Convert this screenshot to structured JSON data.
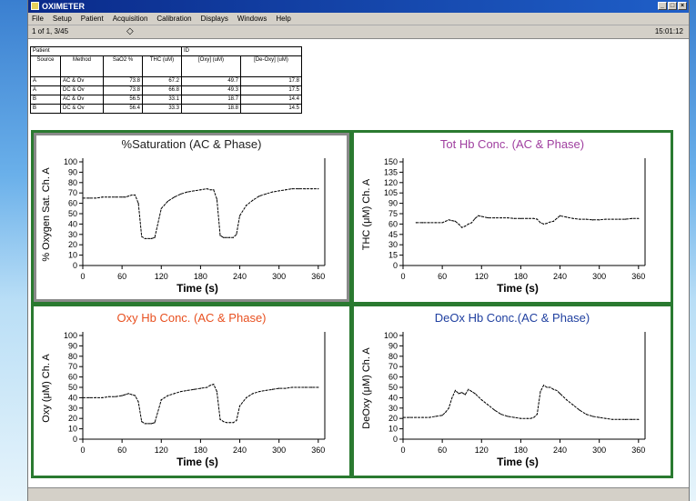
{
  "window": {
    "title": "OXIMETER",
    "buttons": [
      "_",
      "□",
      "×"
    ]
  },
  "menu": [
    "File",
    "Setup",
    "Patient",
    "Acquisition",
    "Calibration",
    "Displays",
    "Windows",
    "Help"
  ],
  "status": {
    "record": "1 of 1, 3/45",
    "nav_icon": "◇",
    "time": "15:01:12"
  },
  "table": {
    "patient_label": "Patient",
    "id_label": "ID",
    "headers": [
      "Source",
      "Method",
      "SaO2 %",
      "THC (uM)",
      "[Oxy] (uM)",
      "[De-Oxy] (uM)"
    ],
    "rows": [
      [
        "A",
        "AC & Ov",
        "73.8",
        "67.2",
        "49.7",
        "17.8"
      ],
      [
        "A",
        "DC & Ov",
        "73.8",
        "66.8",
        "49.3",
        "17.5"
      ],
      [
        "B",
        "AC & Ov",
        "56.5",
        "33.1",
        "18.7",
        "14.4"
      ],
      [
        "B",
        "DC & Ov",
        "56.4",
        "33.3",
        "18.8",
        "14.5"
      ]
    ]
  },
  "colors": {
    "panel_border": "#2a7a30",
    "title_black": "#222222",
    "title_purple": "#a040a0",
    "title_orange": "#e85020",
    "title_blue": "#2040a0"
  },
  "chart_data": [
    {
      "type": "line",
      "title": "%Saturation (AC & Phase)",
      "title_color": "#222222",
      "ylabel": "% Oxygen Sat. Ch. A",
      "xlabel": "Time (s)",
      "yticks": [
        0,
        10,
        20,
        30,
        40,
        50,
        60,
        70,
        80,
        90,
        100
      ],
      "xticks": [
        0,
        60,
        120,
        180,
        240,
        300,
        360
      ],
      "ylim": [
        0,
        100
      ],
      "xlim": [
        0,
        370
      ],
      "x": [
        0,
        10,
        20,
        30,
        40,
        50,
        60,
        65,
        70,
        75,
        80,
        85,
        90,
        95,
        100,
        105,
        110,
        120,
        130,
        140,
        150,
        160,
        170,
        180,
        190,
        195,
        200,
        205,
        210,
        215,
        220,
        225,
        230,
        235,
        240,
        250,
        260,
        270,
        280,
        290,
        300,
        310,
        320,
        330,
        340,
        350,
        360
      ],
      "y": [
        65,
        65,
        65,
        66,
        66,
        66,
        66,
        66,
        67,
        68,
        68,
        60,
        28,
        26,
        26,
        26,
        27,
        55,
        62,
        66,
        69,
        71,
        72,
        73,
        74,
        73,
        73,
        64,
        29,
        27,
        27,
        27,
        27,
        30,
        48,
        58,
        63,
        67,
        69,
        71,
        72,
        73,
        74,
        74,
        74,
        74,
        74
      ]
    },
    {
      "type": "line",
      "title": "Tot Hb Conc. (AC & Phase)",
      "title_color": "#a040a0",
      "ylabel": "THC (μM) Ch. A",
      "xlabel": "Time (s)",
      "yticks": [
        0,
        15,
        30,
        45,
        60,
        75,
        90,
        105,
        120,
        135,
        150
      ],
      "xticks": [
        0,
        60,
        120,
        180,
        240,
        300,
        360
      ],
      "ylim": [
        0,
        150
      ],
      "xlim": [
        0,
        370
      ],
      "x": [
        20,
        30,
        40,
        50,
        60,
        65,
        70,
        75,
        80,
        85,
        90,
        95,
        100,
        105,
        110,
        115,
        120,
        130,
        140,
        150,
        160,
        170,
        180,
        190,
        200,
        205,
        210,
        215,
        220,
        225,
        230,
        235,
        240,
        250,
        260,
        270,
        280,
        290,
        300,
        310,
        320,
        330,
        340,
        350,
        360
      ],
      "y": [
        62,
        62,
        62,
        62,
        62,
        64,
        66,
        65,
        64,
        60,
        55,
        57,
        60,
        62,
        68,
        72,
        71,
        69,
        69,
        69,
        69,
        68,
        68,
        68,
        68,
        67,
        62,
        60,
        61,
        63,
        64,
        68,
        72,
        70,
        68,
        67,
        67,
        66,
        66,
        67,
        67,
        67,
        67,
        68,
        68
      ]
    },
    {
      "type": "line",
      "title": "Oxy Hb Conc. (AC & Phase)",
      "title_color": "#e85020",
      "ylabel": "Oxy (μM) Ch. A",
      "xlabel": "Time (s)",
      "yticks": [
        0,
        10,
        20,
        30,
        40,
        50,
        60,
        70,
        80,
        90,
        100
      ],
      "xticks": [
        0,
        60,
        120,
        180,
        240,
        300,
        360
      ],
      "ylim": [
        0,
        100
      ],
      "xlim": [
        0,
        370
      ],
      "x": [
        0,
        10,
        20,
        30,
        40,
        50,
        60,
        65,
        70,
        75,
        80,
        85,
        90,
        95,
        100,
        105,
        110,
        120,
        130,
        140,
        150,
        160,
        170,
        180,
        190,
        195,
        200,
        205,
        210,
        215,
        220,
        225,
        230,
        235,
        240,
        250,
        260,
        270,
        280,
        290,
        300,
        310,
        320,
        330,
        340,
        350,
        360
      ],
      "y": [
        40,
        40,
        40,
        40,
        41,
        41,
        42,
        43,
        44,
        43,
        42,
        36,
        17,
        15,
        15,
        15,
        16,
        38,
        42,
        44,
        46,
        47,
        48,
        49,
        50,
        52,
        53,
        46,
        19,
        17,
        16,
        16,
        16,
        18,
        32,
        40,
        44,
        46,
        47,
        48,
        49,
        49,
        50,
        50,
        50,
        50,
        50
      ]
    },
    {
      "type": "line",
      "title": "DeOx Hb Conc.(AC & Phase)",
      "title_color": "#2040a0",
      "ylabel": "DeOxy (μM) Ch. A",
      "xlabel": "Time (s)",
      "yticks": [
        0,
        10,
        20,
        30,
        40,
        50,
        60,
        70,
        80,
        90,
        100
      ],
      "xticks": [
        0,
        60,
        120,
        180,
        240,
        300,
        360
      ],
      "ylim": [
        0,
        100
      ],
      "xlim": [
        0,
        370
      ],
      "x": [
        0,
        10,
        20,
        30,
        40,
        50,
        60,
        65,
        70,
        75,
        80,
        85,
        90,
        95,
        100,
        105,
        110,
        120,
        130,
        140,
        150,
        160,
        170,
        180,
        190,
        195,
        200,
        205,
        210,
        215,
        220,
        225,
        230,
        235,
        240,
        250,
        260,
        270,
        280,
        290,
        300,
        310,
        320,
        330,
        340,
        350,
        360
      ],
      "y": [
        21,
        21,
        21,
        21,
        21,
        22,
        23,
        26,
        30,
        40,
        47,
        44,
        45,
        43,
        48,
        46,
        44,
        38,
        33,
        28,
        24,
        22,
        21,
        20,
        20,
        20,
        21,
        24,
        46,
        52,
        50,
        50,
        48,
        47,
        44,
        38,
        33,
        28,
        24,
        22,
        21,
        20,
        19,
        19,
        19,
        19,
        19
      ]
    }
  ],
  "xlabel_common": "Time (s)"
}
